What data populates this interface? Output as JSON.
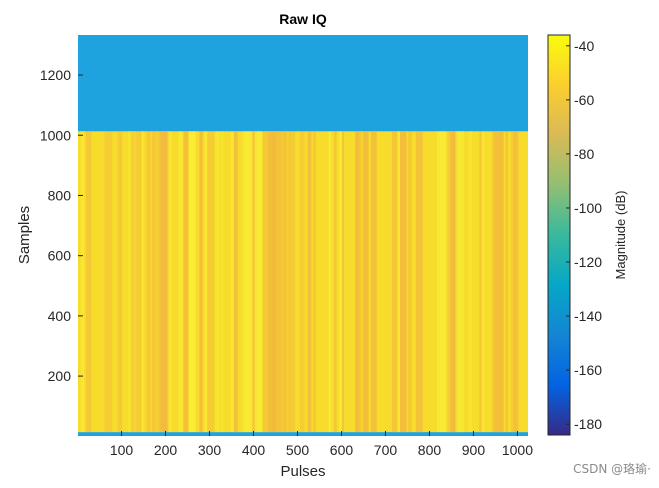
{
  "chart_data": {
    "type": "heatmap",
    "title": "Raw IQ",
    "xlabel": "Pulses",
    "ylabel": "Samples",
    "xlim": [
      1,
      1024
    ],
    "ylim": [
      1,
      1333
    ],
    "x_ticks": [
      100,
      200,
      300,
      400,
      500,
      600,
      700,
      800,
      900,
      1000
    ],
    "y_ticks": [
      200,
      400,
      600,
      800,
      1000,
      1200
    ],
    "regions": [
      {
        "sample_range": [
          1,
          14
        ],
        "magnitude_db": -128
      },
      {
        "sample_range": [
          14,
          1013
        ],
        "magnitude_db": -45
      },
      {
        "sample_range": [
          1013,
          1333
        ],
        "magnitude_db": -128
      }
    ],
    "colorbar": {
      "label": "Magnitude (dB)",
      "range": [
        -184,
        -36
      ],
      "ticks": [
        -40,
        -60,
        -80,
        -100,
        -120,
        -140,
        -160,
        -180
      ],
      "colormap": "parula"
    },
    "colors": {
      "noise_floor": "#1fa3df",
      "signal_base": "#f7dc2c",
      "signal_dark": "#f2b83e"
    }
  },
  "watermark": "CSDN @珞瑜·"
}
